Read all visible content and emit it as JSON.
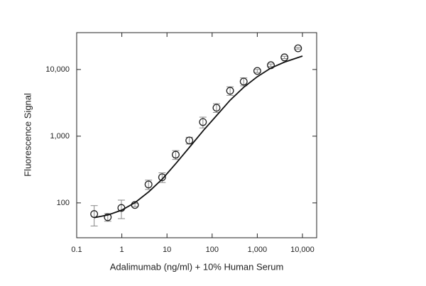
{
  "chart_data": {
    "type": "scatter",
    "x_label": "Adalimumab (ng/ml) + 10% Human Serum",
    "y_label": "Fluorescence Signal",
    "log_x": true,
    "log_y": true,
    "xlim": [
      0.1,
      20650
    ],
    "ylim": [
      30,
      35700
    ],
    "xticks": [
      0.1,
      1,
      10,
      100,
      {
        "value": 1000,
        "label": "1,000"
      },
      {
        "value": 10000,
        "label": "10,000"
      }
    ],
    "yticks": [
      100,
      {
        "value": 1000,
        "label": "1,000"
      },
      {
        "value": 10000,
        "label": "10,000"
      }
    ],
    "series": [
      {
        "color": "#222222",
        "marker": "open-circle",
        "x": [
          0.244,
          0.488,
          0.977,
          1.95,
          3.9,
          7.8,
          15.6,
          31.25,
          62.5,
          125,
          250,
          500,
          1000,
          2000,
          4000,
          8000
        ],
        "values": [
          68,
          61,
          84,
          93,
          189,
          242,
          528,
          863,
          1630,
          2670,
          4800,
          6590,
          9520,
          11600,
          15200,
          20800
        ],
        "errors": [
          23,
          8,
          26,
          5,
          30,
          40,
          80,
          100,
          300,
          400,
          700,
          900,
          500,
          500,
          600,
          600
        ],
        "error_color": "#888888"
      },
      {
        "color": "#111111",
        "line": true,
        "x": [
          0.244,
          0.5,
          1,
          2,
          4,
          8,
          16,
          32,
          64,
          125,
          250,
          500,
          1000,
          2000,
          4000,
          10000
        ],
        "values": [
          60,
          66,
          78,
          102,
          148,
          230,
          395,
          690,
          1220,
          2030,
          3460,
          5400,
          7800,
          10500,
          12900,
          15900
        ]
      }
    ]
  }
}
